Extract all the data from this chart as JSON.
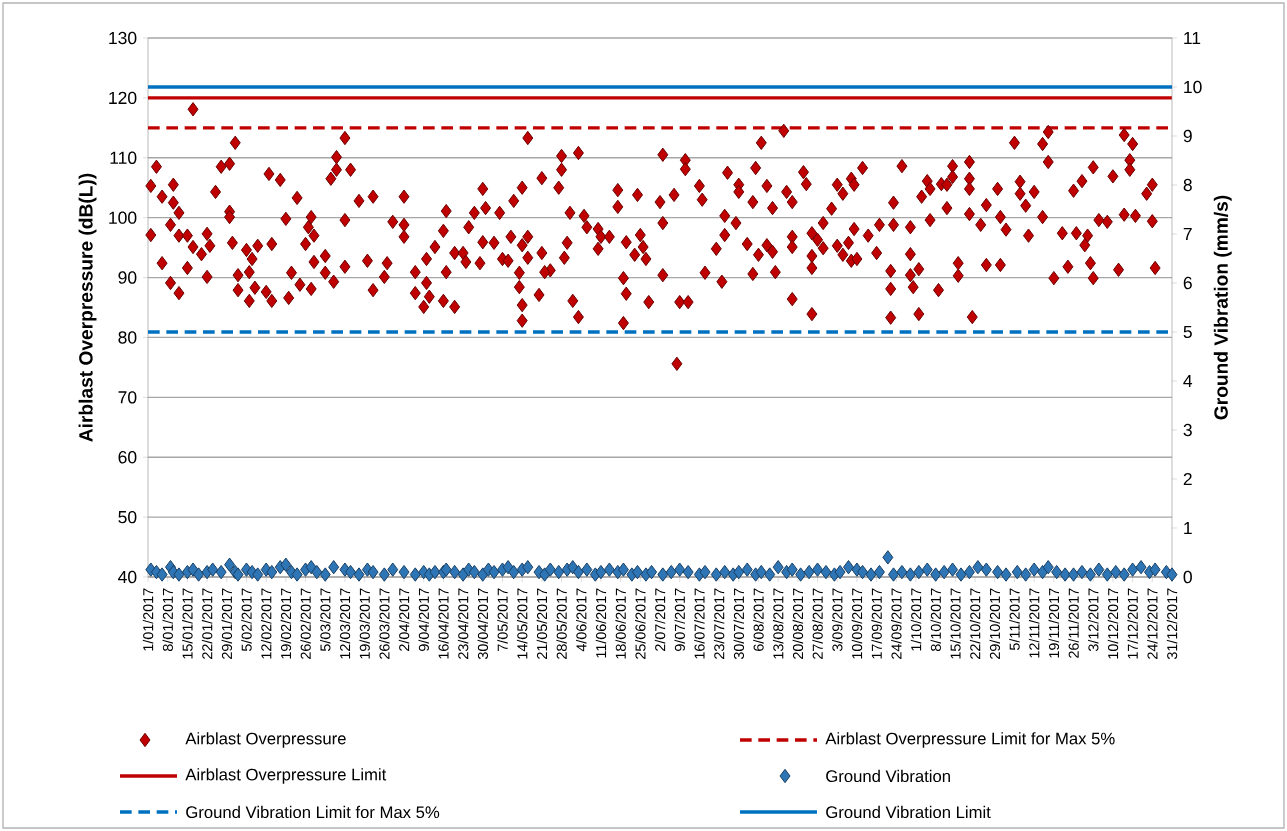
{
  "chart_data": {
    "type": "scatter",
    "ylabel": "Airblast Overpressure (dB(L))",
    "y2label": "Ground Vibration (mm/s)",
    "xlim": [
      "2017-01-01",
      "2017-12-31"
    ],
    "ylim": [
      40,
      130
    ],
    "y2lim": [
      0,
      11
    ],
    "yticks": [
      40,
      50,
      60,
      70,
      80,
      90,
      100,
      110,
      120,
      130
    ],
    "y2ticks": [
      0,
      1,
      2,
      3,
      4,
      5,
      6,
      7,
      8,
      9,
      10,
      11
    ],
    "xticks": [
      {
        "value": "2017-01-01",
        "label": "1/01/2017"
      },
      {
        "value": "2017-01-08",
        "label": "8/01/2017"
      },
      {
        "value": "2017-01-15",
        "label": "15/01/2017"
      },
      {
        "value": "2017-01-22",
        "label": "22/01/2017"
      },
      {
        "value": "2017-01-29",
        "label": "29/01/2017"
      },
      {
        "value": "2017-02-05",
        "label": "5/02/2017"
      },
      {
        "value": "2017-02-12",
        "label": "12/02/2017"
      },
      {
        "value": "2017-02-19",
        "label": "19/02/2017"
      },
      {
        "value": "2017-02-26",
        "label": "26/02/2017"
      },
      {
        "value": "2017-03-05",
        "label": "5/03/2017"
      },
      {
        "value": "2017-03-12",
        "label": "12/03/2017"
      },
      {
        "value": "2017-03-19",
        "label": "19/03/2017"
      },
      {
        "value": "2017-03-26",
        "label": "26/03/2017"
      },
      {
        "value": "2017-04-02",
        "label": "2/04/2017"
      },
      {
        "value": "2017-04-09",
        "label": "9/04/2017"
      },
      {
        "value": "2017-04-16",
        "label": "16/04/2017"
      },
      {
        "value": "2017-04-23",
        "label": "23/04/2017"
      },
      {
        "value": "2017-04-30",
        "label": "30/04/2017"
      },
      {
        "value": "2017-05-07",
        "label": "7/05/2017"
      },
      {
        "value": "2017-05-14",
        "label": "14/05/2017"
      },
      {
        "value": "2017-05-21",
        "label": "21/05/2017"
      },
      {
        "value": "2017-05-28",
        "label": "28/05/2017"
      },
      {
        "value": "2017-06-04",
        "label": "4/06/2017"
      },
      {
        "value": "2017-06-11",
        "label": "11/06/2017"
      },
      {
        "value": "2017-06-18",
        "label": "18/06/2017"
      },
      {
        "value": "2017-06-25",
        "label": "25/06/2017"
      },
      {
        "value": "2017-07-02",
        "label": "2/07/2017"
      },
      {
        "value": "2017-07-09",
        "label": "9/07/2017"
      },
      {
        "value": "2017-07-16",
        "label": "16/07/2017"
      },
      {
        "value": "2017-07-23",
        "label": "23/07/2017"
      },
      {
        "value": "2017-07-30",
        "label": "30/07/2017"
      },
      {
        "value": "2017-08-06",
        "label": "6/08/2017"
      },
      {
        "value": "2017-08-13",
        "label": "13/08/2017"
      },
      {
        "value": "2017-08-20",
        "label": "20/08/2017"
      },
      {
        "value": "2017-08-27",
        "label": "27/08/2017"
      },
      {
        "value": "2017-09-03",
        "label": "3/09/2017"
      },
      {
        "value": "2017-09-10",
        "label": "10/09/2017"
      },
      {
        "value": "2017-09-17",
        "label": "17/09/2017"
      },
      {
        "value": "2017-09-24",
        "label": "24/09/2017"
      },
      {
        "value": "2017-10-01",
        "label": "1/10/2017"
      },
      {
        "value": "2017-10-08",
        "label": "8/10/2017"
      },
      {
        "value": "2017-10-15",
        "label": "15/10/2017"
      },
      {
        "value": "2017-10-22",
        "label": "22/10/2017"
      },
      {
        "value": "2017-10-29",
        "label": "29/10/2017"
      },
      {
        "value": "2017-11-05",
        "label": "5/11/2017"
      },
      {
        "value": "2017-11-12",
        "label": "12/11/2017"
      },
      {
        "value": "2017-11-19",
        "label": "19/11/2017"
      },
      {
        "value": "2017-11-26",
        "label": "26/11/2017"
      },
      {
        "value": "2017-12-03",
        "label": "3/12/2017"
      },
      {
        "value": "2017-12-10",
        "label": "10/12/2017"
      },
      {
        "value": "2017-12-17",
        "label": "17/12/2017"
      },
      {
        "value": "2017-12-24",
        "label": "24/12/2017"
      },
      {
        "value": "2017-12-31",
        "label": "31/12/2017"
      }
    ],
    "grid": "y",
    "legend": "bottom",
    "marker": "diamond",
    "series": [
      {
        "name": "Airblast Overpressure",
        "color": "#c00000",
        "x": [
          "2017-01-02",
          "2017-01-02",
          "2017-01-04",
          "2017-01-06",
          "2017-01-06",
          "2017-01-09",
          "2017-01-10",
          "2017-01-10",
          "2017-01-09",
          "2017-01-12",
          "2017-01-12",
          "2017-01-12",
          "2017-01-15",
          "2017-01-17",
          "2017-01-15",
          "2017-01-17",
          "2017-01-20",
          "2017-01-22",
          "2017-01-23",
          "2017-01-22",
          "2017-01-25",
          "2017-01-27",
          "2017-01-30",
          "2017-02-01",
          "2017-01-30",
          "2017-01-30",
          "2017-01-31",
          "2017-02-02",
          "2017-02-02",
          "2017-02-05",
          "2017-02-07",
          "2017-02-06",
          "2017-02-09",
          "2017-02-06",
          "2017-02-08",
          "2017-02-12",
          "2017-02-14",
          "2017-02-14",
          "2017-02-13",
          "2017-02-17",
          "2017-02-19",
          "2017-02-20",
          "2017-02-21",
          "2017-02-23",
          "2017-02-24",
          "2017-02-28",
          "2017-02-27",
          "2017-03-01",
          "2017-02-26",
          "2017-03-01",
          "2017-03-05",
          "2017-03-05",
          "2017-03-08",
          "2017-02-28",
          "2017-03-09",
          "2017-03-09",
          "2017-03-07",
          "2017-03-12",
          "2017-03-14",
          "2017-03-12",
          "2017-03-12",
          "2017-03-17",
          "2017-03-22",
          "2017-03-20",
          "2017-03-27",
          "2017-03-26",
          "2017-03-22",
          "2017-03-29",
          "2017-04-02",
          "2017-04-02",
          "2017-04-02",
          "2017-04-06",
          "2017-04-06",
          "2017-04-09",
          "2017-04-10",
          "2017-04-10",
          "2017-04-13",
          "2017-04-11",
          "2017-04-16",
          "2017-04-17",
          "2017-04-17",
          "2017-04-16",
          "2017-04-20",
          "2017-04-20",
          "2017-04-23",
          "2017-04-24",
          "2017-04-25",
          "2017-04-27",
          "2017-04-30",
          "2017-05-01",
          "2017-04-30",
          "2017-05-04",
          "2017-04-29",
          "2017-05-06",
          "2017-05-07",
          "2017-05-09",
          "2017-05-11",
          "2017-05-14",
          "2017-05-10",
          "2017-05-16",
          "2017-05-14",
          "2017-05-16",
          "2017-05-13",
          "2017-05-13",
          "2017-05-14",
          "2017-05-14",
          "2017-05-16",
          "2017-05-20",
          "2017-05-21",
          "2017-05-21",
          "2017-05-24",
          "2017-05-22",
          "2017-05-27",
          "2017-05-28",
          "2017-05-28",
          "2017-05-30",
          "2017-05-29",
          "2017-05-31",
          "2017-06-03",
          "2017-06-05",
          "2017-06-06",
          "2017-06-10",
          "2017-06-11",
          "2017-06-14",
          "2017-06-10",
          "2017-06-01",
          "2017-06-03",
          "2017-06-17",
          "2017-06-17",
          "2017-06-20",
          "2017-06-19",
          "2017-06-20",
          "2017-06-19",
          "2017-06-24",
          "2017-06-25",
          "2017-06-26",
          "2017-06-23",
          "2017-06-27",
          "2017-06-28",
          "2017-07-02",
          "2017-07-03",
          "2017-07-03",
          "2017-07-03",
          "2017-07-07",
          "2017-07-08",
          "2017-07-09",
          "2017-07-11",
          "2017-07-11",
          "2017-07-12",
          "2017-07-16",
          "2017-07-17",
          "2017-07-18",
          "2017-07-22",
          "2017-07-24",
          "2017-07-25",
          "2017-07-25",
          "2017-07-26",
          "2017-07-29",
          "2017-07-30",
          "2017-07-30",
          "2017-08-02",
          "2017-08-04",
          "2017-08-05",
          "2017-08-07",
          "2017-08-06",
          "2017-08-04",
          "2017-08-09",
          "2017-08-11",
          "2017-08-09",
          "2017-08-11",
          "2017-08-12",
          "2017-08-15",
          "2017-08-16",
          "2017-08-18",
          "2017-08-18",
          "2017-08-18",
          "2017-08-18",
          "2017-08-22",
          "2017-08-23",
          "2017-08-25",
          "2017-08-27",
          "2017-08-25",
          "2017-08-29",
          "2017-08-25",
          "2017-08-25",
          "2017-08-29",
          "2017-09-01",
          "2017-09-03",
          "2017-09-05",
          "2017-09-07",
          "2017-09-08",
          "2017-09-10",
          "2017-09-09",
          "2017-09-03",
          "2017-09-05",
          "2017-09-08",
          "2017-09-09",
          "2017-09-12",
          "2017-09-14",
          "2017-09-17",
          "2017-09-18",
          "2017-09-23",
          "2017-09-23",
          "2017-09-22",
          "2017-09-22",
          "2017-09-22",
          "2017-09-26",
          "2017-09-29",
          "2017-09-29",
          "2017-09-29",
          "2017-10-02",
          "2017-09-30",
          "2017-10-02",
          "2017-10-03",
          "2017-10-05",
          "2017-10-06",
          "2017-10-06",
          "2017-10-09",
          "2017-10-10",
          "2017-10-12",
          "2017-10-14",
          "2017-10-14",
          "2017-10-12",
          "2017-10-16",
          "2017-10-16",
          "2017-10-20",
          "2017-10-20",
          "2017-10-20",
          "2017-10-20",
          "2017-10-24",
          "2017-10-21",
          "2017-10-26",
          "2017-10-26",
          "2017-10-31",
          "2017-10-30",
          "2017-10-31",
          "2017-11-02",
          "2017-11-05",
          "2017-11-07",
          "2017-11-07",
          "2017-11-09",
          "2017-11-12",
          "2017-11-10",
          "2017-11-15",
          "2017-11-17",
          "2017-11-17",
          "2017-11-15",
          "2017-11-19",
          "2017-11-22",
          "2017-11-24",
          "2017-11-26",
          "2017-11-29",
          "2017-12-03",
          "2017-11-27",
          "2017-12-01",
          "2017-11-30",
          "2017-12-02",
          "2017-12-03",
          "2017-12-05",
          "2017-12-08",
          "2017-12-10",
          "2017-12-12",
          "2017-12-14",
          "2017-12-17",
          "2017-12-16",
          "2017-12-16",
          "2017-12-14",
          "2017-12-18",
          "2017-12-22",
          "2017-12-24",
          "2017-12-24",
          "2017-12-25"
        ],
        "values": [
          105.3,
          97.1,
          108.5,
          103.5,
          92.4,
          89.1,
          105.5,
          102.5,
          98.8,
          100.8,
          97,
          87.4,
          97,
          95.1,
          91.6,
          118.1,
          93.9,
          97.3,
          95.3,
          90.1,
          104.3,
          108.5,
          109,
          112.5,
          101,
          100.1,
          95.8,
          90.4,
          87.9,
          94.6,
          93.1,
          90.9,
          95.3,
          86.1,
          88.3,
          87.6,
          86.1,
          95.6,
          107.3,
          106.3,
          99.8,
          86.6,
          90.8,
          103.3,
          88.8,
          100.1,
          98.4,
          97,
          95.6,
          92.6,
          93.6,
          90.8,
          89.3,
          88.1,
          110.1,
          108,
          106.5,
          113.3,
          108,
          99.6,
          91.8,
          102.8,
          103.5,
          92.8,
          92.4,
          90.1,
          87.9,
          99.3,
          103.5,
          98.8,
          96.8,
          90.9,
          87.4,
          85.1,
          93.1,
          89.1,
          95.1,
          86.8,
          97.8,
          101.1,
          90.9,
          86.1,
          85.1,
          94.1,
          94.1,
          92.6,
          98.4,
          100.8,
          104.8,
          101.6,
          95.9,
          95.8,
          92.4,
          100.8,
          93.1,
          92.8,
          102.8,
          105,
          96.8,
          96.8,
          95.4,
          93.3,
          90.8,
          88.4,
          85.4,
          82.8,
          113.3,
          87.1,
          106.6,
          94.1,
          91.2,
          90.9,
          105,
          108,
          110.3,
          95.8,
          93.3,
          100.8,
          110.8,
          100.3,
          98.4,
          98.1,
          96.8,
          96.8,
          94.8,
          86.1,
          83.4,
          104.6,
          101.8,
          95.9,
          89.9,
          87.3,
          82.4,
          103.8,
          97.1,
          95.1,
          93.8,
          93.1,
          85.9,
          102.6,
          99.1,
          90.4,
          110.5,
          103.8,
          75.6,
          85.9,
          109.6,
          108.1,
          85.9,
          105.3,
          103,
          90.8,
          94.8,
          89.3,
          100.3,
          97.1,
          107.5,
          99.1,
          105.5,
          104.3,
          95.6,
          102.6,
          108.3,
          112.5,
          93.8,
          90.6,
          95.4,
          94.3,
          105.3,
          101.6,
          90.9,
          114.5,
          104.3,
          102.6,
          96.8,
          95.1,
          86.4,
          107.6,
          105.6,
          97.4,
          96.3,
          93.6,
          94.9,
          91.6,
          83.9,
          99.1,
          101.5,
          95.3,
          93.8,
          95.8,
          92.8,
          93.1,
          98.1,
          105.5,
          104,
          106.5,
          105.5,
          108.3,
          97,
          94.1,
          98.8,
          98.8,
          102.5,
          91.1,
          88.1,
          83.3,
          108.6,
          98.4,
          93.9,
          90.4,
          91.4,
          88.4,
          83.9,
          103.5,
          106.1,
          104.8,
          99.6,
          87.9,
          105.6,
          105.5,
          108.6,
          106.8,
          101.6,
          92.4,
          90.3,
          109.3,
          106.5,
          104.8,
          100.6,
          98.8,
          83.4,
          102.1,
          92.1,
          92.1,
          104.8,
          100.1,
          98,
          112.5,
          106,
          104,
          102,
          104.3,
          97,
          112.3,
          114.3,
          109.3,
          100.1,
          89.9,
          97.4,
          91.8,
          104.5,
          106.1,
          108.4,
          97.4,
          97,
          95.4,
          92.4,
          89.9,
          99.6,
          99.3,
          106.9,
          91.3,
          113.8,
          112.3,
          109.6,
          108,
          100.5,
          100.3,
          104,
          105.5,
          99.4,
          91.6
        ]
      },
      {
        "name": "Ground Vibration",
        "color": "#2e75b6",
        "axis": "y2",
        "x": [
          "2017-01-02",
          "2017-01-04",
          "2017-01-06",
          "2017-01-09",
          "2017-01-10",
          "2017-01-12",
          "2017-01-15",
          "2017-01-17",
          "2017-01-19",
          "2017-01-22",
          "2017-01-24",
          "2017-01-27",
          "2017-01-30",
          "2017-02-01",
          "2017-02-02",
          "2017-02-05",
          "2017-02-07",
          "2017-02-09",
          "2017-02-12",
          "2017-02-14",
          "2017-02-17",
          "2017-02-19",
          "2017-02-21",
          "2017-02-23",
          "2017-02-26",
          "2017-02-28",
          "2017-03-02",
          "2017-03-05",
          "2017-03-08",
          "2017-03-12",
          "2017-03-14",
          "2017-03-17",
          "2017-03-20",
          "2017-03-22",
          "2017-03-26",
          "2017-03-29",
          "2017-04-02",
          "2017-04-06",
          "2017-04-09",
          "2017-04-11",
          "2017-04-13",
          "2017-04-16",
          "2017-04-17",
          "2017-04-20",
          "2017-04-23",
          "2017-04-25",
          "2017-04-27",
          "2017-04-30",
          "2017-05-02",
          "2017-05-04",
          "2017-05-07",
          "2017-05-09",
          "2017-05-11",
          "2017-05-14",
          "2017-05-16",
          "2017-05-20",
          "2017-05-22",
          "2017-05-24",
          "2017-05-27",
          "2017-05-30",
          "2017-06-01",
          "2017-06-03",
          "2017-06-06",
          "2017-06-09",
          "2017-06-11",
          "2017-06-14",
          "2017-06-17",
          "2017-06-19",
          "2017-06-22",
          "2017-06-24",
          "2017-06-27",
          "2017-06-29",
          "2017-07-03",
          "2017-07-06",
          "2017-07-09",
          "2017-07-12",
          "2017-07-16",
          "2017-07-18",
          "2017-07-22",
          "2017-07-25",
          "2017-07-28",
          "2017-07-30",
          "2017-08-02",
          "2017-08-05",
          "2017-08-07",
          "2017-08-10",
          "2017-08-13",
          "2017-08-16",
          "2017-08-18",
          "2017-08-21",
          "2017-08-24",
          "2017-08-27",
          "2017-08-30",
          "2017-09-02",
          "2017-09-04",
          "2017-09-07",
          "2017-09-10",
          "2017-09-12",
          "2017-09-15",
          "2017-09-18",
          "2017-09-21",
          "2017-09-23",
          "2017-09-26",
          "2017-09-29",
          "2017-10-02",
          "2017-10-05",
          "2017-10-08",
          "2017-10-11",
          "2017-10-14",
          "2017-10-17",
          "2017-10-20",
          "2017-10-23",
          "2017-10-26",
          "2017-10-30",
          "2017-11-02",
          "2017-11-06",
          "2017-11-09",
          "2017-11-12",
          "2017-11-15",
          "2017-11-17",
          "2017-11-20",
          "2017-11-23",
          "2017-11-26",
          "2017-11-29",
          "2017-12-02",
          "2017-12-05",
          "2017-12-08",
          "2017-12-11",
          "2017-12-14",
          "2017-12-17",
          "2017-12-20",
          "2017-12-23",
          "2017-12-25",
          "2017-12-29",
          "2017-12-31"
        ],
        "values": [
          0.15,
          0.1,
          0.05,
          0.2,
          0.1,
          0.05,
          0.1,
          0.15,
          0.05,
          0.1,
          0.15,
          0.1,
          0.25,
          0.1,
          0.05,
          0.15,
          0.1,
          0.05,
          0.15,
          0.1,
          0.2,
          0.25,
          0.1,
          0.05,
          0.15,
          0.2,
          0.1,
          0.05,
          0.2,
          0.15,
          0.1,
          0.05,
          0.15,
          0.1,
          0.05,
          0.15,
          0.1,
          0.05,
          0.1,
          0.05,
          0.1,
          0.1,
          0.15,
          0.1,
          0.05,
          0.15,
          0.1,
          0.05,
          0.15,
          0.1,
          0.15,
          0.2,
          0.1,
          0.15,
          0.2,
          0.1,
          0.05,
          0.15,
          0.1,
          0.15,
          0.2,
          0.1,
          0.15,
          0.05,
          0.1,
          0.15,
          0.1,
          0.15,
          0.05,
          0.1,
          0.05,
          0.1,
          0.05,
          0.1,
          0.15,
          0.1,
          0.05,
          0.1,
          0.05,
          0.1,
          0.05,
          0.1,
          0.15,
          0.05,
          0.1,
          0.05,
          0.2,
          0.1,
          0.15,
          0.05,
          0.1,
          0.15,
          0.1,
          0.05,
          0.1,
          0.2,
          0.15,
          0.1,
          0.05,
          0.1,
          0.4,
          0.05,
          0.1,
          0.05,
          0.1,
          0.15,
          0.05,
          0.1,
          0.15,
          0.05,
          0.1,
          0.2,
          0.15,
          0.1,
          0.05,
          0.1,
          0.05,
          0.15,
          0.1,
          0.2,
          0.1,
          0.05,
          0.05,
          0.1,
          0.05,
          0.15,
          0.05,
          0.1,
          0.05,
          0.15,
          0.2,
          0.1,
          0.15,
          0.1,
          0.05
        ]
      }
    ],
    "ref_lines": [
      {
        "axis": "y",
        "value": 115,
        "label": "Airblast Overpressure Limit for Max 5%",
        "color": "#c00000",
        "line_style": "dashed"
      },
      {
        "axis": "y",
        "value": 120,
        "label": "Airblast Overpressure Limit",
        "color": "#c00000",
        "line_style": "solid"
      },
      {
        "axis": "y2",
        "value": 5,
        "label": "Ground Vibration Limit for Max 5%",
        "color": "#0070c0",
        "line_style": "dashed"
      },
      {
        "axis": "y2",
        "value": 10,
        "label": "Ground Vibration Limit",
        "color": "#0070c0",
        "line_style": "solid"
      }
    ]
  }
}
